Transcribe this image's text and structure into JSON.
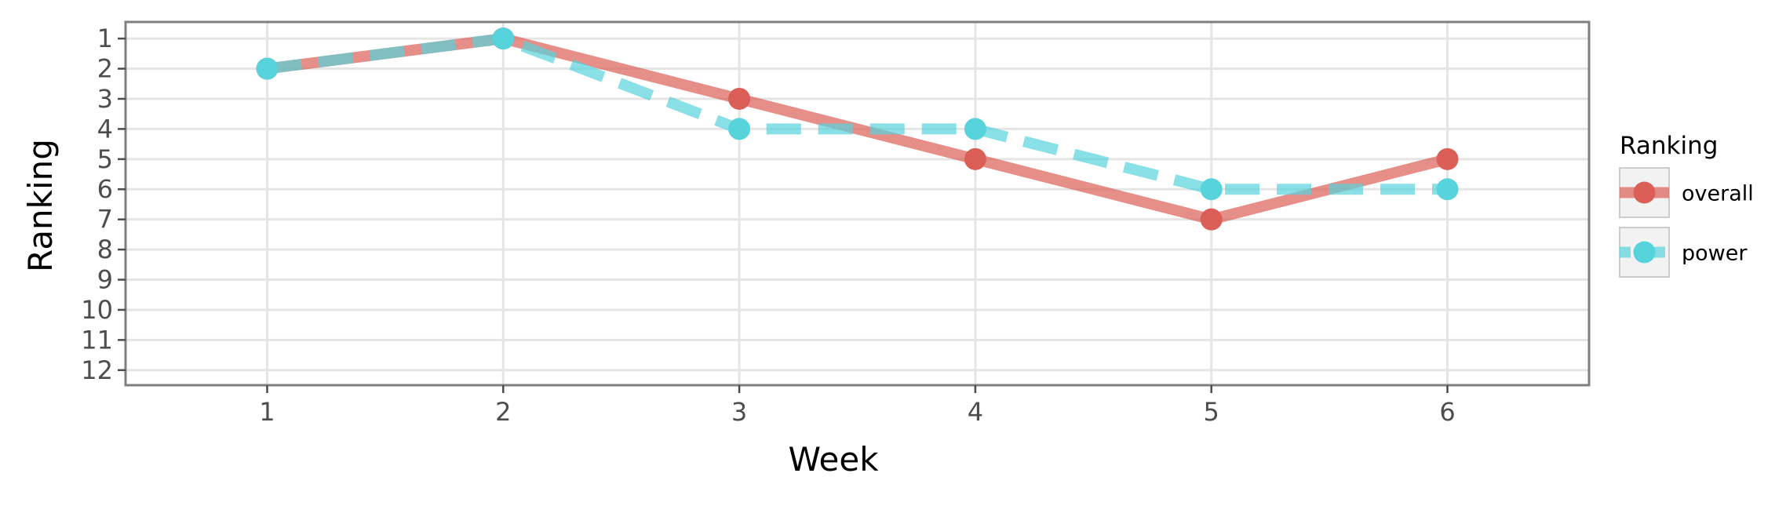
{
  "chart_data": {
    "type": "line",
    "xlabel": "Week",
    "ylabel": "Ranking",
    "x": [
      1,
      2,
      3,
      4,
      5,
      6
    ],
    "x_ticks": [
      "1",
      "2",
      "3",
      "4",
      "5",
      "6"
    ],
    "xlim": [
      0.4,
      6.6
    ],
    "y_ticks": [
      "1",
      "2",
      "3",
      "4",
      "5",
      "6",
      "7",
      "8",
      "9",
      "10",
      "11",
      "12"
    ],
    "ylim": [
      12.5,
      0.45
    ],
    "y_reversed": true,
    "grid": true,
    "legend": {
      "title": "Ranking",
      "placement": "right"
    },
    "series": [
      {
        "name": "overall",
        "values": [
          2,
          1,
          3,
          5,
          7,
          5
        ],
        "color": "#db5f57",
        "line_style": "solid"
      },
      {
        "name": "power",
        "values": [
          2,
          1,
          4,
          4,
          6,
          6
        ],
        "color": "#57d3db",
        "line_style": "dashed"
      }
    ]
  }
}
